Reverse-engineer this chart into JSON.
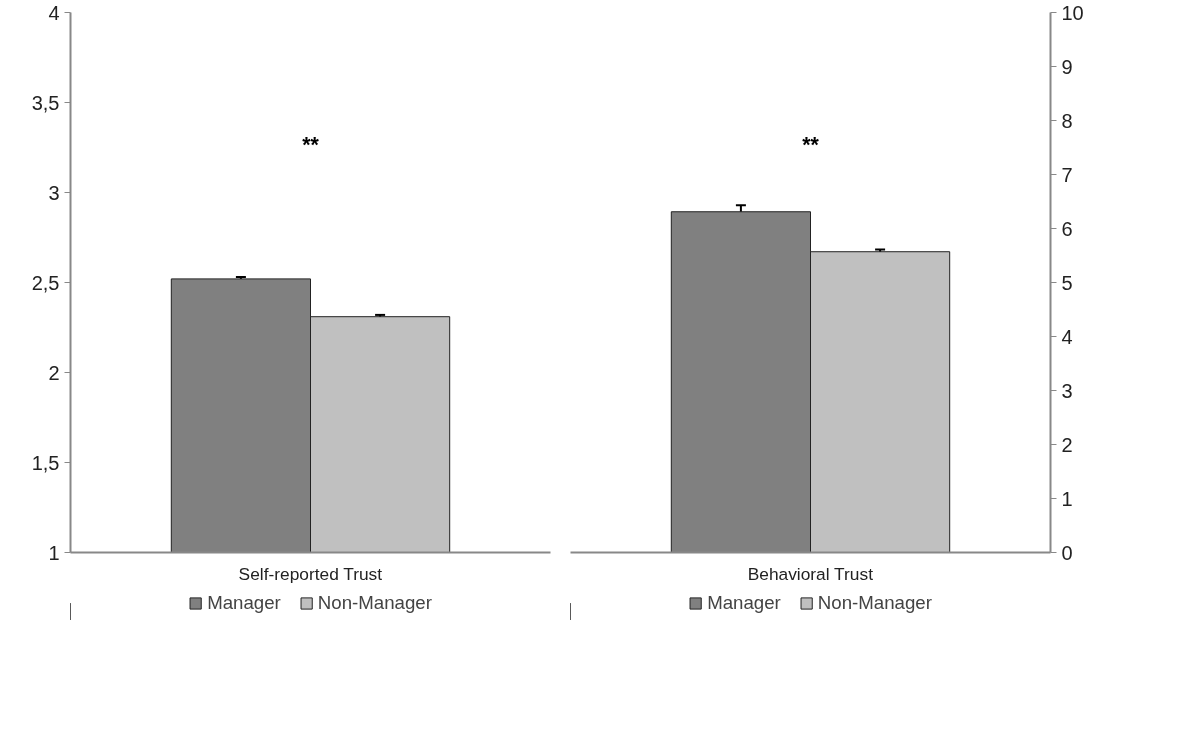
{
  "chart_data": [
    {
      "type": "bar",
      "categories": [
        "Self-reported Trust"
      ],
      "ylim": [
        1,
        4
      ],
      "yticks": [
        1,
        {
          "value": 1.5,
          "label": "1,5"
        },
        2,
        {
          "value": 2.5,
          "label": "2,5"
        },
        3,
        {
          "value": 3.5,
          "label": "3,5"
        },
        4
      ],
      "legend": "bottom",
      "series": [
        {
          "name": "Manager",
          "color": "#808080",
          "values": [
            2.52
          ],
          "errors": [
            0.01
          ]
        },
        {
          "name": "Non-Manager",
          "color": "#c0c0c0",
          "values": [
            2.31
          ],
          "errors": [
            0.01
          ]
        }
      ],
      "annotations": [
        "**"
      ]
    },
    {
      "type": "bar",
      "categories": [
        "Behavioral Trust"
      ],
      "ylim": [
        0,
        10
      ],
      "yticks": [
        0,
        1,
        2,
        3,
        4,
        5,
        6,
        7,
        8,
        9,
        10
      ],
      "legend": "bottom",
      "series": [
        {
          "name": "Manager",
          "color": "#808080",
          "values": [
            6.31
          ],
          "errors": [
            0.12
          ]
        },
        {
          "name": "Non-Manager",
          "color": "#c0c0c0",
          "values": [
            5.57
          ],
          "errors": [
            0.04
          ]
        }
      ],
      "annotations": [
        "**"
      ]
    }
  ]
}
